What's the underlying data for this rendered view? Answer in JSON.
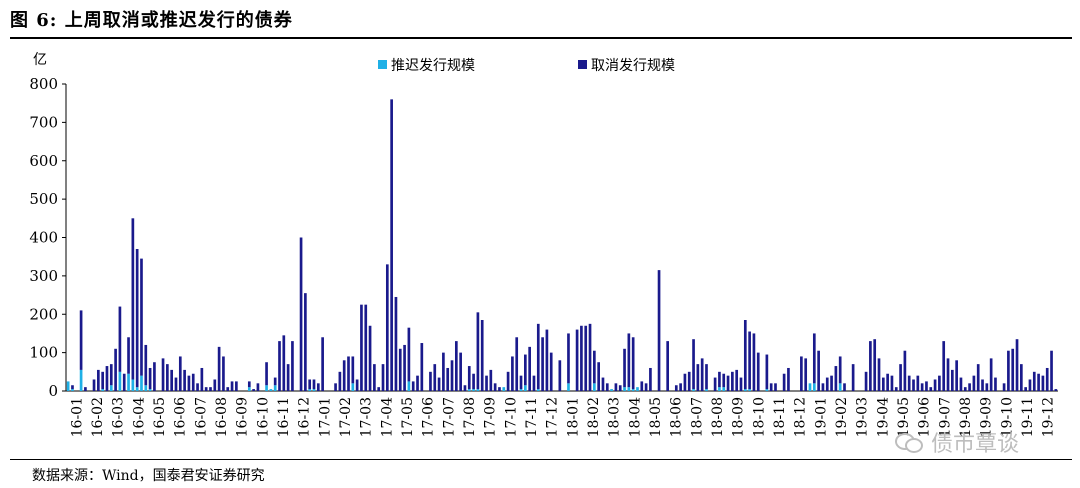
{
  "figure": {
    "title": "图 6:  上周取消或推迟发行的债券",
    "source": "数据来源：Wind，国泰君安证券研究",
    "watermark": "债市覃谈"
  },
  "chart_data": {
    "type": "bar",
    "stacked": true,
    "ylabel": "亿",
    "ylim": [
      0,
      800
    ],
    "yticks": [
      0,
      100,
      200,
      300,
      400,
      500,
      600,
      700,
      800
    ],
    "legend_position": "top",
    "series": [
      {
        "name": "推迟发行规模",
        "color": "#1fb0e6"
      },
      {
        "name": "取消发行规模",
        "color": "#1a1a8c"
      }
    ],
    "xtick_labels": [
      "16-01",
      "16-02",
      "16-03",
      "16-04",
      "16-05",
      "16-06",
      "16-07",
      "16-08",
      "16-09",
      "16-10",
      "16-11",
      "16-12",
      "17-01",
      "17-02",
      "17-03",
      "17-04",
      "17-05",
      "17-06",
      "17-07",
      "17-08",
      "17-09",
      "17-10",
      "17-11",
      "17-12",
      "18-01",
      "18-02",
      "18-03",
      "18-04",
      "18-05",
      "18-06",
      "18-07",
      "18-08",
      "18-09",
      "18-10",
      "18-11",
      "18-12",
      "19-01",
      "19-02",
      "19-03",
      "19-04",
      "19-05",
      "19-06",
      "19-07",
      "19-08",
      "19-09",
      "19-10",
      "19-11",
      "19-12"
    ],
    "postponed": [
      25,
      5,
      0,
      55,
      0,
      0,
      0,
      0,
      5,
      0,
      15,
      0,
      50,
      0,
      45,
      30,
      10,
      40,
      15,
      5,
      0,
      0,
      0,
      0,
      0,
      0,
      0,
      0,
      0,
      0,
      0,
      0,
      0,
      0,
      0,
      0,
      0,
      0,
      0,
      0,
      0,
      0,
      10,
      0,
      0,
      0,
      15,
      5,
      15,
      0,
      0,
      0,
      0,
      0,
      0,
      0,
      5,
      5,
      0,
      0,
      0,
      0,
      0,
      0,
      0,
      0,
      20,
      0,
      0,
      0,
      0,
      0,
      0,
      0,
      0,
      0,
      0,
      0,
      0,
      25,
      0,
      0,
      0,
      0,
      0,
      0,
      0,
      0,
      0,
      0,
      0,
      0,
      0,
      5,
      5,
      5,
      0,
      0,
      0,
      0,
      0,
      10,
      0,
      0,
      0,
      5,
      15,
      0,
      0,
      5,
      0,
      0,
      0,
      0,
      0,
      0,
      20,
      0,
      0,
      0,
      0,
      0,
      20,
      0,
      0,
      0,
      5,
      0,
      0,
      10,
      10,
      5,
      10,
      0,
      0,
      0,
      0,
      0,
      0,
      0,
      0,
      0,
      0,
      0,
      0,
      5,
      0,
      0,
      5,
      0,
      0,
      10,
      10,
      0,
      0,
      0,
      0,
      5,
      5,
      0,
      0,
      0,
      5,
      0,
      0,
      0,
      0,
      0,
      0,
      0,
      0,
      0,
      20,
      20,
      0,
      0,
      0,
      0,
      0,
      20,
      0,
      0,
      0,
      0,
      0,
      0,
      0,
      0,
      0,
      0,
      0,
      0,
      0,
      0,
      0,
      0,
      0,
      0,
      0,
      0,
      0,
      0,
      0,
      0,
      0,
      0,
      0,
      0,
      0,
      0,
      0,
      0,
      0,
      0,
      0,
      0,
      0,
      0,
      0,
      0,
      0,
      0,
      0,
      0,
      0,
      0,
      0,
      0,
      0,
      0,
      0,
      0,
      0,
      0
    ],
    "cancelled": [
      0,
      10,
      0,
      155,
      10,
      0,
      30,
      55,
      45,
      65,
      55,
      110,
      170,
      45,
      95,
      420,
      360,
      305,
      105,
      55,
      75,
      0,
      85,
      70,
      55,
      35,
      90,
      55,
      40,
      45,
      20,
      60,
      10,
      10,
      30,
      115,
      90,
      10,
      25,
      25,
      0,
      0,
      15,
      5,
      20,
      0,
      60,
      0,
      20,
      130,
      145,
      70,
      130,
      0,
      400,
      255,
      25,
      25,
      20,
      140,
      0,
      0,
      20,
      50,
      80,
      90,
      70,
      30,
      225,
      225,
      170,
      70,
      10,
      70,
      330,
      760,
      245,
      110,
      120,
      140,
      25,
      40,
      125,
      0,
      50,
      70,
      35,
      100,
      60,
      80,
      130,
      100,
      15,
      60,
      40,
      200,
      185,
      40,
      55,
      20,
      10,
      0,
      50,
      90,
      140,
      35,
      80,
      115,
      40,
      170,
      140,
      160,
      100,
      0,
      80,
      0,
      130,
      0,
      160,
      170,
      170,
      175,
      85,
      75,
      35,
      20,
      0,
      20,
      15,
      100,
      140,
      135,
      0,
      25,
      20,
      60,
      0,
      315,
      0,
      130,
      0,
      15,
      20,
      45,
      50,
      130,
      70,
      85,
      65,
      0,
      35,
      40,
      35,
      40,
      50,
      55,
      35,
      180,
      150,
      150,
      100,
      0,
      90,
      20,
      20,
      0,
      45,
      60,
      0,
      0,
      90,
      85,
      0,
      130,
      105,
      20,
      35,
      40,
      65,
      70,
      20,
      0,
      70,
      0,
      0,
      50,
      130,
      135,
      85,
      35,
      45,
      40,
      10,
      70,
      105,
      40,
      30,
      40,
      20,
      25,
      10,
      30,
      40,
      130,
      85,
      55,
      80,
      35,
      10,
      20,
      40,
      70,
      30,
      20,
      85,
      35,
      0,
      20,
      105,
      110,
      135,
      70,
      10,
      30,
      50,
      45,
      40,
      60,
      105,
      5
    ]
  }
}
